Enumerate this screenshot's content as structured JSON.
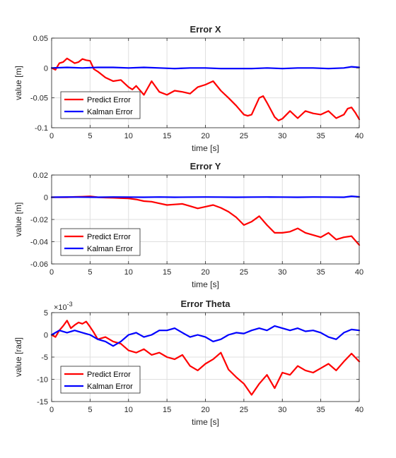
{
  "chart_data": [
    {
      "type": "line",
      "title": "Error X",
      "xlabel": "time [s]",
      "ylabel": "value [m]",
      "xlim": [
        0,
        40
      ],
      "ylim": [
        -0.1,
        0.05
      ],
      "xticks": [
        0,
        5,
        10,
        15,
        20,
        25,
        30,
        35,
        40
      ],
      "yticks": [
        -0.1,
        -0.05,
        0,
        0.05
      ],
      "ytick_labels": [
        "-0.1",
        "-0.05",
        "0",
        "0.05"
      ],
      "exponent_label": "",
      "grid": true,
      "legend_placement": "bottom-left",
      "series": [
        {
          "name": "Predict Error",
          "color": "#ff0000",
          "x": [
            0,
            0.5,
            1,
            1.5,
            2,
            2.5,
            3,
            3.5,
            4,
            4.5,
            5,
            5.5,
            6,
            7,
            8,
            9,
            10,
            10.5,
            11,
            12,
            13,
            14,
            15,
            16,
            17,
            18,
            19,
            20,
            21,
            22,
            23,
            24,
            25,
            25.5,
            26,
            27,
            27.5,
            28,
            29,
            29.5,
            30,
            31,
            32,
            33,
            34,
            35,
            36,
            37,
            38,
            38.5,
            39,
            39.5,
            40
          ],
          "values": [
            0,
            -0.003,
            0.008,
            0.01,
            0.016,
            0.012,
            0.008,
            0.01,
            0.015,
            0.013,
            0.012,
            -0.002,
            -0.006,
            -0.016,
            -0.022,
            -0.02,
            -0.032,
            -0.036,
            -0.03,
            -0.045,
            -0.022,
            -0.04,
            -0.045,
            -0.038,
            -0.04,
            -0.043,
            -0.032,
            -0.028,
            -0.022,
            -0.038,
            -0.05,
            -0.063,
            -0.078,
            -0.08,
            -0.078,
            -0.05,
            -0.047,
            -0.058,
            -0.082,
            -0.088,
            -0.085,
            -0.072,
            -0.084,
            -0.072,
            -0.076,
            -0.078,
            -0.072,
            -0.084,
            -0.078,
            -0.068,
            -0.066,
            -0.075,
            -0.086
          ]
        },
        {
          "name": "Kalman Error",
          "color": "#0000ff",
          "x": [
            0,
            2,
            4,
            6,
            8,
            10,
            12,
            14,
            16,
            18,
            20,
            22,
            24,
            26,
            28,
            30,
            32,
            34,
            36,
            38,
            39,
            40
          ],
          "values": [
            0,
            0.001,
            0.0,
            0.001,
            0.001,
            0.0,
            0.001,
            0.0,
            -0.001,
            0.0,
            0.0,
            -0.001,
            -0.001,
            -0.001,
            0.0,
            -0.001,
            0.0,
            0.0,
            -0.001,
            0.0,
            0.002,
            0.001
          ]
        }
      ]
    },
    {
      "type": "line",
      "title": "Error Y",
      "xlabel": "time [s]",
      "ylabel": "value [m]",
      "xlim": [
        0,
        40
      ],
      "ylim": [
        -0.06,
        0.02
      ],
      "xticks": [
        0,
        5,
        10,
        15,
        20,
        25,
        30,
        35,
        40
      ],
      "yticks": [
        -0.06,
        -0.04,
        -0.02,
        0,
        0.02
      ],
      "ytick_labels": [
        "-0.06",
        "-0.04",
        "-0.02",
        "0",
        "0.02"
      ],
      "exponent_label": "",
      "grid": true,
      "legend_placement": "bottom-left",
      "series": [
        {
          "name": "Predict Error",
          "color": "#ff0000",
          "x": [
            0,
            1,
            2,
            3,
            4,
            5,
            6,
            7,
            8,
            9,
            10,
            11,
            12,
            13,
            14,
            15,
            16,
            17,
            18,
            19,
            20,
            21,
            22,
            23,
            24,
            25,
            26,
            27,
            28,
            29,
            30,
            31,
            32,
            33,
            34,
            35,
            36,
            37,
            38,
            39,
            40
          ],
          "values": [
            0,
            0,
            0,
            0.0003,
            0.0005,
            0.0008,
            0,
            -0.0003,
            -0.0005,
            -0.0008,
            -0.001,
            -0.002,
            -0.0035,
            -0.004,
            -0.0055,
            -0.007,
            -0.0065,
            -0.006,
            -0.008,
            -0.01,
            -0.0085,
            -0.007,
            -0.0095,
            -0.013,
            -0.018,
            -0.025,
            -0.022,
            -0.017,
            -0.025,
            -0.032,
            -0.032,
            -0.031,
            -0.028,
            -0.032,
            -0.034,
            -0.036,
            -0.032,
            -0.038,
            -0.036,
            -0.035,
            -0.043
          ]
        },
        {
          "name": "Kalman Error",
          "color": "#0000ff",
          "x": [
            0,
            2,
            4,
            6,
            8,
            10,
            12,
            14,
            16,
            18,
            20,
            22,
            24,
            26,
            28,
            30,
            32,
            34,
            36,
            38,
            39,
            40
          ],
          "values": [
            0,
            0.0002,
            0.0001,
            0.0,
            0.0002,
            0.0001,
            0.0,
            0.0002,
            0.0,
            0.0001,
            0.0002,
            0.0001,
            0.0,
            0.0001,
            0.0002,
            0.0001,
            0.0,
            0.0002,
            0.0001,
            0.0,
            0.0009,
            0.0003
          ]
        }
      ]
    },
    {
      "type": "line",
      "title": "Error Theta",
      "xlabel": "time [s]",
      "ylabel": "value [rad]",
      "xlim": [
        0,
        40
      ],
      "ylim": [
        -0.015,
        0.005
      ],
      "xticks": [
        0,
        5,
        10,
        15,
        20,
        25,
        30,
        35,
        40
      ],
      "yticks": [
        -0.015,
        -0.01,
        -0.005,
        0,
        0.005
      ],
      "ytick_labels": [
        "-15",
        "-10",
        "-5",
        "0",
        "5"
      ],
      "exponent_label": "×10",
      "exponent_power": "-3",
      "grid": true,
      "legend_placement": "bottom-left",
      "series": [
        {
          "name": "Predict Error",
          "color": "#ff0000",
          "x": [
            0,
            0.5,
            1,
            1.5,
            2,
            2.5,
            3,
            3.5,
            4,
            4.5,
            5,
            5.5,
            6,
            7,
            8,
            9,
            10,
            11,
            12,
            13,
            14,
            15,
            16,
            17,
            18,
            19,
            20,
            21,
            22,
            23,
            24,
            25,
            26,
            27,
            28,
            29,
            30,
            31,
            32,
            33,
            34,
            35,
            36,
            37,
            38,
            39,
            40
          ],
          "values": [
            0,
            -0.0005,
            0.001,
            0.002,
            0.0032,
            0.0015,
            0.0022,
            0.0028,
            0.0025,
            0.003,
            0.0018,
            0.0005,
            -0.001,
            -0.0005,
            -0.0015,
            -0.002,
            -0.0035,
            -0.004,
            -0.0032,
            -0.0045,
            -0.004,
            -0.005,
            -0.0055,
            -0.0045,
            -0.007,
            -0.008,
            -0.0065,
            -0.0055,
            -0.004,
            -0.0078,
            -0.0095,
            -0.011,
            -0.0135,
            -0.011,
            -0.009,
            -0.012,
            -0.0085,
            -0.009,
            -0.007,
            -0.008,
            -0.0085,
            -0.0075,
            -0.0065,
            -0.008,
            -0.006,
            -0.0042,
            -0.006
          ]
        },
        {
          "name": "Kalman Error",
          "color": "#0000ff",
          "x": [
            0,
            1,
            2,
            3,
            4,
            5,
            6,
            7,
            8,
            9,
            10,
            11,
            12,
            13,
            14,
            15,
            16,
            17,
            18,
            19,
            20,
            21,
            22,
            23,
            24,
            25,
            26,
            27,
            28,
            29,
            30,
            31,
            32,
            33,
            34,
            35,
            36,
            37,
            38,
            39,
            40
          ],
          "values": [
            0,
            0.001,
            0.0005,
            0.001,
            0.0005,
            0,
            -0.001,
            -0.0015,
            -0.0025,
            -0.0015,
            0,
            0.0005,
            -0.0005,
            0,
            0.001,
            0.001,
            0.0015,
            0.0005,
            -0.0005,
            0,
            -0.0005,
            -0.0015,
            -0.001,
            0,
            0.0005,
            0.0003,
            0.001,
            0.0015,
            0.001,
            0.002,
            0.0015,
            0.001,
            0.0015,
            0.0008,
            0.001,
            0.0005,
            -0.0005,
            -0.001,
            0.0005,
            0.0012,
            0.001
          ]
        }
      ]
    }
  ]
}
